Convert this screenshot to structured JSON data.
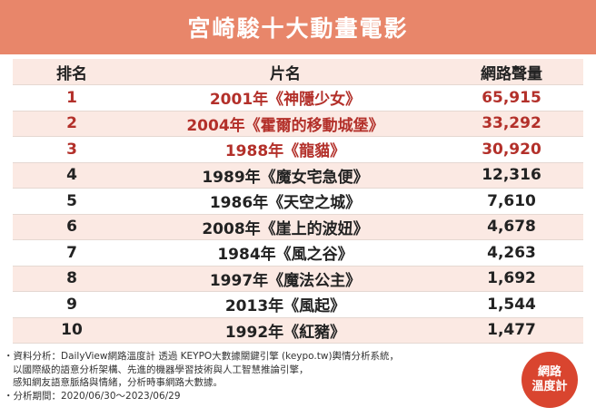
{
  "banner": {
    "title": "宮崎駿十大動畫電影"
  },
  "table": {
    "headers": {
      "rank": "排名",
      "title": "片名",
      "volume": "網路聲量"
    },
    "rows": [
      {
        "rank": "1",
        "title": "2001年《神隱少女》",
        "volume": "65,915"
      },
      {
        "rank": "2",
        "title": "2004年《霍爾的移動城堡》",
        "volume": "33,292"
      },
      {
        "rank": "3",
        "title": "1988年《龍貓》",
        "volume": "30,920"
      },
      {
        "rank": "4",
        "title": "1989年《魔女宅急便》",
        "volume": "12,316"
      },
      {
        "rank": "5",
        "title": "1986年《天空之城》",
        "volume": "7,610"
      },
      {
        "rank": "6",
        "title": "2008年《崖上的波妞》",
        "volume": "4,678"
      },
      {
        "rank": "7",
        "title": "1984年《風之谷》",
        "volume": "4,263"
      },
      {
        "rank": "8",
        "title": "1997年《魔法公主》",
        "volume": "1,692"
      },
      {
        "rank": "9",
        "title": "2013年《風起》",
        "volume": "1,544"
      },
      {
        "rank": "10",
        "title": "1992年《紅豬》",
        "volume": "1,477"
      }
    ],
    "highlight_color": "#b3302a"
  },
  "footer": {
    "line1": "・資料分析：DailyView網路溫度計 透過 KEYPO大數據關鍵引擎 (keypo.tw)輿情分析系統，",
    "line2": "以國際級的語意分析架構、先進的機器學習技術與人工智慧推論引擎，",
    "line3": "感知網友語意脈絡與情緒，分析時事網路大數據。",
    "line4": "・分析期間：2020/06/30～2023/06/29"
  },
  "logo": {
    "line1": "網路",
    "line2": "溫度計"
  },
  "colors": {
    "banner": "#e8866a",
    "stripe": "#fbe9e3",
    "logo": "#d9452f"
  }
}
